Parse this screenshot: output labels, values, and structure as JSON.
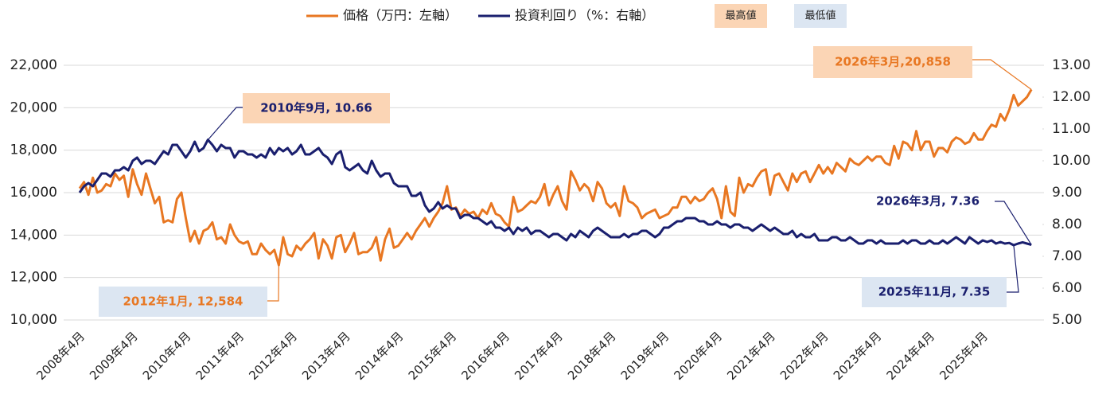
{
  "chart_data": {
    "type": "line",
    "categories": [
      "2008年4月",
      null,
      null,
      null,
      null,
      null,
      null,
      null,
      null,
      null,
      null,
      null,
      "2009年4月",
      null,
      null,
      null,
      null,
      null,
      null,
      null,
      null,
      null,
      null,
      null,
      "2010年4月",
      null,
      null,
      null,
      null,
      null,
      null,
      null,
      null,
      null,
      null,
      null,
      "2011年4月",
      null,
      null,
      null,
      null,
      null,
      null,
      null,
      null,
      null,
      null,
      null,
      "2012年4月",
      null,
      null,
      null,
      null,
      null,
      null,
      null,
      null,
      null,
      null,
      null,
      "2013年4月",
      null,
      null,
      null,
      null,
      null,
      null,
      null,
      null,
      null,
      null,
      null,
      "2014年4月",
      null,
      null,
      null,
      null,
      null,
      null,
      null,
      null,
      null,
      null,
      null,
      "2015年4月",
      null,
      null,
      null,
      null,
      null,
      null,
      null,
      null,
      null,
      null,
      null,
      "2016年4月",
      null,
      null,
      null,
      null,
      null,
      null,
      null,
      null,
      null,
      null,
      null,
      "2017年4月",
      null,
      null,
      null,
      null,
      null,
      null,
      null,
      null,
      null,
      null,
      null,
      "2018年4月",
      null,
      null,
      null,
      null,
      null,
      null,
      null,
      null,
      null,
      null,
      null,
      "2019年4月",
      null,
      null,
      null,
      null,
      null,
      null,
      null,
      null,
      null,
      null,
      null,
      "2020年4月",
      null,
      null,
      null,
      null,
      null,
      null,
      null,
      null,
      null,
      null,
      null,
      "2021年4月",
      null,
      null,
      null,
      null,
      null,
      null,
      null,
      null,
      null,
      null,
      null,
      "2022年4月",
      null,
      null,
      null,
      null,
      null,
      null,
      null,
      null,
      null,
      null,
      null,
      "2023年4月",
      null,
      null,
      null,
      null,
      null,
      null,
      null,
      null,
      null,
      null,
      null,
      "2024年4月",
      null,
      null,
      null,
      null,
      null,
      null,
      null,
      null,
      null,
      null,
      null,
      "2025年4月",
      null,
      null,
      null,
      null,
      null,
      null,
      null,
      null,
      null,
      null,
      null
    ],
    "series": [
      {
        "name": "価格（万円：左軸）",
        "color": "#e87722",
        "values": [
          16200,
          16500,
          15900,
          16700,
          16000,
          16100,
          16400,
          16300,
          16900,
          16600,
          16800,
          15800,
          17100,
          16400,
          15900,
          16900,
          16200,
          15500,
          15800,
          14600,
          14700,
          14600,
          15700,
          16000,
          14800,
          13700,
          14200,
          13600,
          14200,
          14300,
          14600,
          13800,
          13900,
          13600,
          14500,
          14000,
          13700,
          13600,
          13700,
          13100,
          13100,
          13600,
          13300,
          13100,
          13300,
          12584,
          13900,
          13100,
          13000,
          13500,
          13300,
          13600,
          13800,
          14100,
          12900,
          13800,
          13500,
          12900,
          13900,
          14000,
          13200,
          13600,
          14100,
          13100,
          13200,
          13200,
          13400,
          13900,
          12800,
          13800,
          14300,
          13400,
          13500,
          13800,
          14100,
          13800,
          14200,
          14500,
          14800,
          14400,
          14800,
          15100,
          15500,
          16300,
          15200,
          15300,
          14900,
          15200,
          15000,
          15100,
          14800,
          15200,
          15000,
          15500,
          15000,
          14900,
          14600,
          14400,
          15800,
          15100,
          15200,
          15400,
          15600,
          15500,
          15800,
          16400,
          15400,
          15900,
          16300,
          15600,
          15200,
          17000,
          16600,
          16100,
          16400,
          16200,
          15600,
          16500,
          16200,
          15500,
          15300,
          15500,
          14900,
          16300,
          15600,
          15500,
          15300,
          14800,
          15000,
          15100,
          15200,
          14800,
          14900,
          15000,
          15300,
          15300,
          15800,
          15800,
          15500,
          15800,
          15600,
          15700,
          16000,
          16200,
          15700,
          14800,
          16300,
          15100,
          14900,
          16700,
          16000,
          16400,
          16300,
          16700,
          17000,
          17100,
          15900,
          16800,
          16900,
          16500,
          16100,
          16900,
          16500,
          16900,
          17000,
          16500,
          16900,
          17300,
          16900,
          17200,
          16900,
          17400,
          17200,
          17000,
          17600,
          17400,
          17300,
          17500,
          17700,
          17500,
          17700,
          17700,
          17400,
          17300,
          18200,
          17600,
          18400,
          18300,
          18000,
          18900,
          18000,
          18400,
          18400,
          17700,
          18100,
          18100,
          17900,
          18400,
          18600,
          18500,
          18300,
          18400,
          18800,
          18500,
          18500,
          18900,
          19200,
          19100,
          19700,
          19400,
          19900,
          20600,
          20100,
          20300,
          20500,
          20858
        ]
      },
      {
        "name": "投資利回り（%：右軸）",
        "color": "#1a1f6e",
        "axis": "y2",
        "values": [
          9.0,
          9.2,
          9.3,
          9.2,
          9.4,
          9.6,
          9.6,
          9.5,
          9.7,
          9.7,
          9.8,
          9.7,
          10.0,
          10.1,
          9.9,
          10.0,
          10.0,
          9.9,
          10.1,
          10.3,
          10.2,
          10.5,
          10.5,
          10.3,
          10.1,
          10.3,
          10.6,
          10.3,
          10.4,
          10.66,
          10.5,
          10.3,
          10.5,
          10.4,
          10.4,
          10.1,
          10.3,
          10.3,
          10.2,
          10.2,
          10.1,
          10.2,
          10.1,
          10.4,
          10.2,
          10.4,
          10.3,
          10.4,
          10.2,
          10.3,
          10.5,
          10.2,
          10.2,
          10.3,
          10.4,
          10.2,
          10.1,
          9.9,
          10.2,
          10.3,
          9.8,
          9.7,
          9.8,
          9.9,
          9.7,
          9.6,
          10.0,
          9.7,
          9.5,
          9.6,
          9.6,
          9.3,
          9.2,
          9.2,
          9.2,
          8.9,
          8.9,
          9.0,
          8.6,
          8.4,
          8.5,
          8.7,
          8.5,
          8.6,
          8.5,
          8.5,
          8.2,
          8.3,
          8.3,
          8.2,
          8.2,
          8.1,
          8.0,
          8.1,
          7.9,
          7.9,
          7.8,
          7.9,
          7.7,
          7.9,
          7.8,
          7.9,
          7.7,
          7.8,
          7.8,
          7.7,
          7.6,
          7.7,
          7.7,
          7.6,
          7.5,
          7.7,
          7.6,
          7.8,
          7.7,
          7.6,
          7.8,
          7.9,
          7.8,
          7.7,
          7.6,
          7.6,
          7.6,
          7.7,
          7.6,
          7.7,
          7.7,
          7.8,
          7.8,
          7.7,
          7.6,
          7.7,
          7.9,
          7.9,
          8.0,
          8.1,
          8.1,
          8.2,
          8.2,
          8.2,
          8.1,
          8.1,
          8.0,
          8.0,
          8.1,
          8.0,
          8.0,
          7.9,
          8.0,
          8.0,
          7.9,
          7.9,
          7.8,
          7.9,
          8.0,
          7.9,
          7.8,
          7.9,
          7.8,
          7.7,
          7.7,
          7.8,
          7.6,
          7.7,
          7.6,
          7.6,
          7.7,
          7.5,
          7.5,
          7.5,
          7.6,
          7.6,
          7.5,
          7.5,
          7.6,
          7.5,
          7.4,
          7.4,
          7.5,
          7.5,
          7.4,
          7.5,
          7.4,
          7.4,
          7.4,
          7.4,
          7.5,
          7.4,
          7.5,
          7.5,
          7.4,
          7.4,
          7.5,
          7.4,
          7.4,
          7.5,
          7.4,
          7.5,
          7.6,
          7.5,
          7.4,
          7.6,
          7.5,
          7.4,
          7.5,
          7.45,
          7.5,
          7.4,
          7.45,
          7.4,
          7.42,
          7.35,
          7.4,
          7.44,
          7.4,
          7.36
        ]
      }
    ],
    "legend_notes": [
      {
        "text": "最高値",
        "color": "#fbd5b5"
      },
      {
        "text": "最低値",
        "color": "#dce6f2"
      }
    ],
    "annotations": [
      {
        "text": "2026年3月,20,858",
        "color": "#e87722",
        "box": "#fbd5b5"
      },
      {
        "text": "2010年9月, 10.66",
        "color": "#1a1f6e",
        "box": "#fbd5b5"
      },
      {
        "text": "2012年1月, 12,584",
        "color": "#e87722",
        "box": "#dce6f2"
      },
      {
        "text": "2026年3月, 7.36",
        "color": "#1a1f6e"
      },
      {
        "text": "2025年11月, 7.35",
        "color": "#1a1f6e",
        "box": "#dce6f2"
      }
    ],
    "ylim": [
      10000,
      22000
    ],
    "yticks": [
      {
        "value": 10000,
        "label": "10,000"
      },
      {
        "value": 12000,
        "label": "12,000"
      },
      {
        "value": 14000,
        "label": "14,000"
      },
      {
        "value": 16000,
        "label": "16,000"
      },
      {
        "value": 18000,
        "label": "18,000"
      },
      {
        "value": 20000,
        "label": "20,000"
      },
      {
        "value": 22000,
        "label": "22,000"
      }
    ],
    "y2lim": [
      5,
      13
    ],
    "y2ticks": [
      {
        "value": 5,
        "label": "5.00"
      },
      {
        "value": 6,
        "label": "6.00"
      },
      {
        "value": 7,
        "label": "7.00"
      },
      {
        "value": 8,
        "label": "8.00"
      },
      {
        "value": 9,
        "label": "9.00"
      },
      {
        "value": 10,
        "label": "10.00"
      },
      {
        "value": 11,
        "label": "11.00"
      },
      {
        "value": 12,
        "label": "12.00"
      },
      {
        "value": 13,
        "label": "13.00"
      }
    ],
    "grid": true
  }
}
